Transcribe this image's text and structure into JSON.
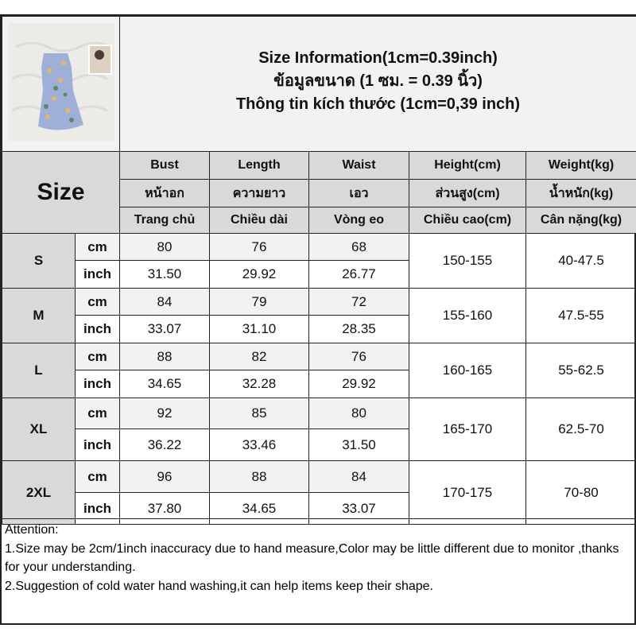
{
  "title_lines": [
    "Size Information(1cm=0.39inch)",
    "ข้อมูลขนาด (1 ซม. = 0.39 นิ้ว)",
    "Thông tin kích thước (1cm=0,39 inch)"
  ],
  "size_label": "Size",
  "columns": [
    {
      "en": "Bust",
      "th": "หน้าอก",
      "vi": "Trang chủ"
    },
    {
      "en": "Length",
      "th": "ความยาว",
      "vi": "Chiều dài"
    },
    {
      "en": "Waist",
      "th": "เอว",
      "vi": "Vòng eo"
    },
    {
      "en": "Height(cm)",
      "th": "ส่วนสูง(cm)",
      "vi": "Chiều cao(cm)"
    },
    {
      "en": "Weight(kg)",
      "th": "น้ำหนัก(kg)",
      "vi": "Cân nặng(kg)"
    }
  ],
  "units": {
    "cm": "cm",
    "inch": "inch"
  },
  "rows": [
    {
      "size": "S",
      "cm": [
        "80",
        "76",
        "68"
      ],
      "inch": [
        "31.50",
        "29.92",
        "26.77"
      ],
      "height": "150-155",
      "weight": "40-47.5"
    },
    {
      "size": "M",
      "cm": [
        "84",
        "79",
        "72"
      ],
      "inch": [
        "33.07",
        "31.10",
        "28.35"
      ],
      "height": "155-160",
      "weight": "47.5-55"
    },
    {
      "size": "L",
      "cm": [
        "88",
        "82",
        "76"
      ],
      "inch": [
        "34.65",
        "32.28",
        "29.92"
      ],
      "height": "160-165",
      "weight": "55-62.5"
    },
    {
      "size": "XL",
      "cm": [
        "92",
        "85",
        "80"
      ],
      "inch": [
        "36.22",
        "33.46",
        "31.50"
      ],
      "height": "165-170",
      "weight": "62.5-70"
    },
    {
      "size": "2XL",
      "cm": [
        "96",
        "88",
        "84"
      ],
      "inch": [
        "37.80",
        "34.65",
        "33.07"
      ],
      "height": "170-175",
      "weight": "70-80"
    }
  ],
  "attention": {
    "heading": "Attention:",
    "lines": [
      "1.Size may be 2cm/1inch inaccuracy due to hand measure,Color may be little different due to monitor ,thanks for your understanding.",
      "2.Suggestion of cold water hand washing,it can help items keep their shape."
    ]
  }
}
